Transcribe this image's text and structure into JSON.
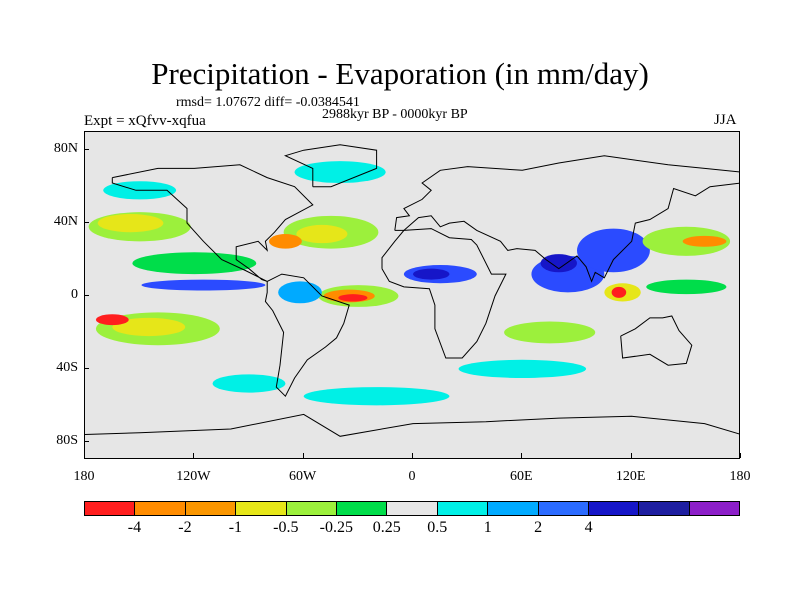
{
  "title": "Precipitation - Evaporation (in mm/day)",
  "stats": "rmsd= 1.07672 diff= -0.0384541",
  "period": "2988kyr BP - 0000kyr BP",
  "experiment": "Expt = xQfvv-xqfua",
  "season": "JJA",
  "map": {
    "lat_range": [
      -90,
      90
    ],
    "lon_range": [
      -180,
      180
    ],
    "lat_ticks": [
      {
        "value": 80,
        "label": "80N"
      },
      {
        "value": 40,
        "label": "40N"
      },
      {
        "value": 0,
        "label": "0"
      },
      {
        "value": -40,
        "label": "40S"
      },
      {
        "value": -80,
        "label": "80S"
      }
    ],
    "lon_ticks": [
      {
        "value": -180,
        "label": "180"
      },
      {
        "value": -120,
        "label": "120W"
      },
      {
        "value": -60,
        "label": "60W"
      },
      {
        "value": 0,
        "label": "0"
      },
      {
        "value": 60,
        "label": "60E"
      },
      {
        "value": 120,
        "label": "120E"
      },
      {
        "value": 180,
        "label": "180"
      }
    ],
    "background_color": "#e6e6e6",
    "regions": [
      {
        "name": "north-pacific-drying",
        "color": "#9cf03c",
        "lon": -150,
        "lat": 38,
        "rlon": 28,
        "rlat": 8
      },
      {
        "name": "north-pacific-band",
        "color": "#e6e619",
        "lon": -155,
        "lat": 40,
        "rlon": 18,
        "rlat": 5
      },
      {
        "name": "east-pacific-trade",
        "color": "#00dd4a",
        "lon": -120,
        "lat": 18,
        "rlon": 34,
        "rlat": 6
      },
      {
        "name": "south-pacific-subtropics",
        "color": "#9cf03c",
        "lon": -140,
        "lat": -18,
        "rlon": 34,
        "rlat": 9
      },
      {
        "name": "south-pacific-core",
        "color": "#e6e619",
        "lon": -145,
        "lat": -17,
        "rlon": 20,
        "rlat": 5
      },
      {
        "name": "south-pacific-red",
        "color": "#ff1e1e",
        "lon": -165,
        "lat": -13,
        "rlon": 9,
        "rlat": 3
      },
      {
        "name": "north-atlantic-drying",
        "color": "#9cf03c",
        "lon": -45,
        "lat": 35,
        "rlon": 26,
        "rlat": 9
      },
      {
        "name": "north-atlantic-core",
        "color": "#e6e619",
        "lon": -50,
        "lat": 34,
        "rlon": 14,
        "rlat": 5
      },
      {
        "name": "gulf-red",
        "color": "#ff8c00",
        "lon": -70,
        "lat": 30,
        "rlon": 9,
        "rlat": 4
      },
      {
        "name": "atlantic-itcz-drying",
        "color": "#9cf03c",
        "lon": -30,
        "lat": 0,
        "rlon": 22,
        "rlat": 6
      },
      {
        "name": "atlantic-itcz-core",
        "color": "#ff8c00",
        "lon": -35,
        "lat": 0,
        "rlon": 14,
        "rlat": 3.5
      },
      {
        "name": "atlantic-itcz-red",
        "color": "#ff1e1e",
        "lon": -33,
        "lat": -1,
        "rlon": 8,
        "rlat": 2
      },
      {
        "name": "amazon-wet",
        "color": "#00aaff",
        "lon": -62,
        "lat": 2,
        "rlon": 12,
        "rlat": 6
      },
      {
        "name": "equatorial-east-pacific",
        "color": "#2b4bff",
        "lon": -115,
        "lat": 6,
        "rlon": 34,
        "rlat": 3
      },
      {
        "name": "africa-sahel-wet",
        "color": "#2b4bff",
        "lon": 15,
        "lat": 12,
        "rlon": 20,
        "rlat": 5
      },
      {
        "name": "africa-core-wet",
        "color": "#1616c8",
        "lon": 10,
        "lat": 12,
        "rlon": 10,
        "rlat": 3
      },
      {
        "name": "indian-ocean-wet",
        "color": "#2b4bff",
        "lon": 85,
        "lat": 12,
        "rlon": 20,
        "rlat": 10
      },
      {
        "name": "india-core",
        "color": "#1616c8",
        "lon": 80,
        "lat": 18,
        "rlon": 10,
        "rlat": 5
      },
      {
        "name": "southeast-asia-wet",
        "color": "#2b4bff",
        "lon": 110,
        "lat": 25,
        "rlon": 20,
        "rlat": 12
      },
      {
        "name": "west-pacific-drying",
        "color": "#9cf03c",
        "lon": 150,
        "lat": 30,
        "rlon": 24,
        "rlat": 8
      },
      {
        "name": "west-pacific-orange",
        "color": "#ff8c00",
        "lon": 160,
        "lat": 30,
        "rlon": 12,
        "rlat": 3
      },
      {
        "name": "maritime-continent-drying",
        "color": "#e6e619",
        "lon": 115,
        "lat": 2,
        "rlon": 10,
        "rlat": 5
      },
      {
        "name": "maritime-continent-red",
        "color": "#ff1e1e",
        "lon": 113,
        "lat": 2,
        "rlon": 4,
        "rlat": 3
      },
      {
        "name": "west-pacific-equator",
        "color": "#00dd4a",
        "lon": 150,
        "lat": 5,
        "rlon": 22,
        "rlat": 4
      },
      {
        "name": "south-indian-drying",
        "color": "#9cf03c",
        "lon": 75,
        "lat": -20,
        "rlon": 25,
        "rlat": 6
      },
      {
        "name": "south-indian-teal",
        "color": "#00f0e6",
        "lon": 60,
        "lat": -40,
        "rlon": 35,
        "rlat": 5
      },
      {
        "name": "southern-ocean-teal",
        "color": "#00f0e6",
        "lon": -20,
        "lat": -55,
        "rlon": 40,
        "rlat": 5
      },
      {
        "name": "south-atlantic-teal",
        "color": "#00f0e6",
        "lon": -90,
        "lat": -48,
        "rlon": 20,
        "rlat": 5
      },
      {
        "name": "arctic-cyan",
        "color": "#00f0e6",
        "lon": -40,
        "lat": 68,
        "rlon": 25,
        "rlat": 6
      },
      {
        "name": "north-pacific-cyan",
        "color": "#00f0e6",
        "lon": -150,
        "lat": 58,
        "rlon": 20,
        "rlat": 5
      }
    ]
  },
  "colorbar": {
    "colors": [
      "#ff1e1e",
      "#ff8c00",
      "#fa9600",
      "#e6e619",
      "#9cf03c",
      "#00dd4a",
      "#e6e6e6",
      "#00f0e6",
      "#00aaff",
      "#2b6bff",
      "#1616c8",
      "#1e1ea0",
      "#8c1ec8"
    ],
    "labels": [
      "-4",
      "-2",
      "-1",
      "-0.5",
      "-0.25",
      "0.25",
      "0.5",
      "1",
      "2",
      "4"
    ]
  }
}
